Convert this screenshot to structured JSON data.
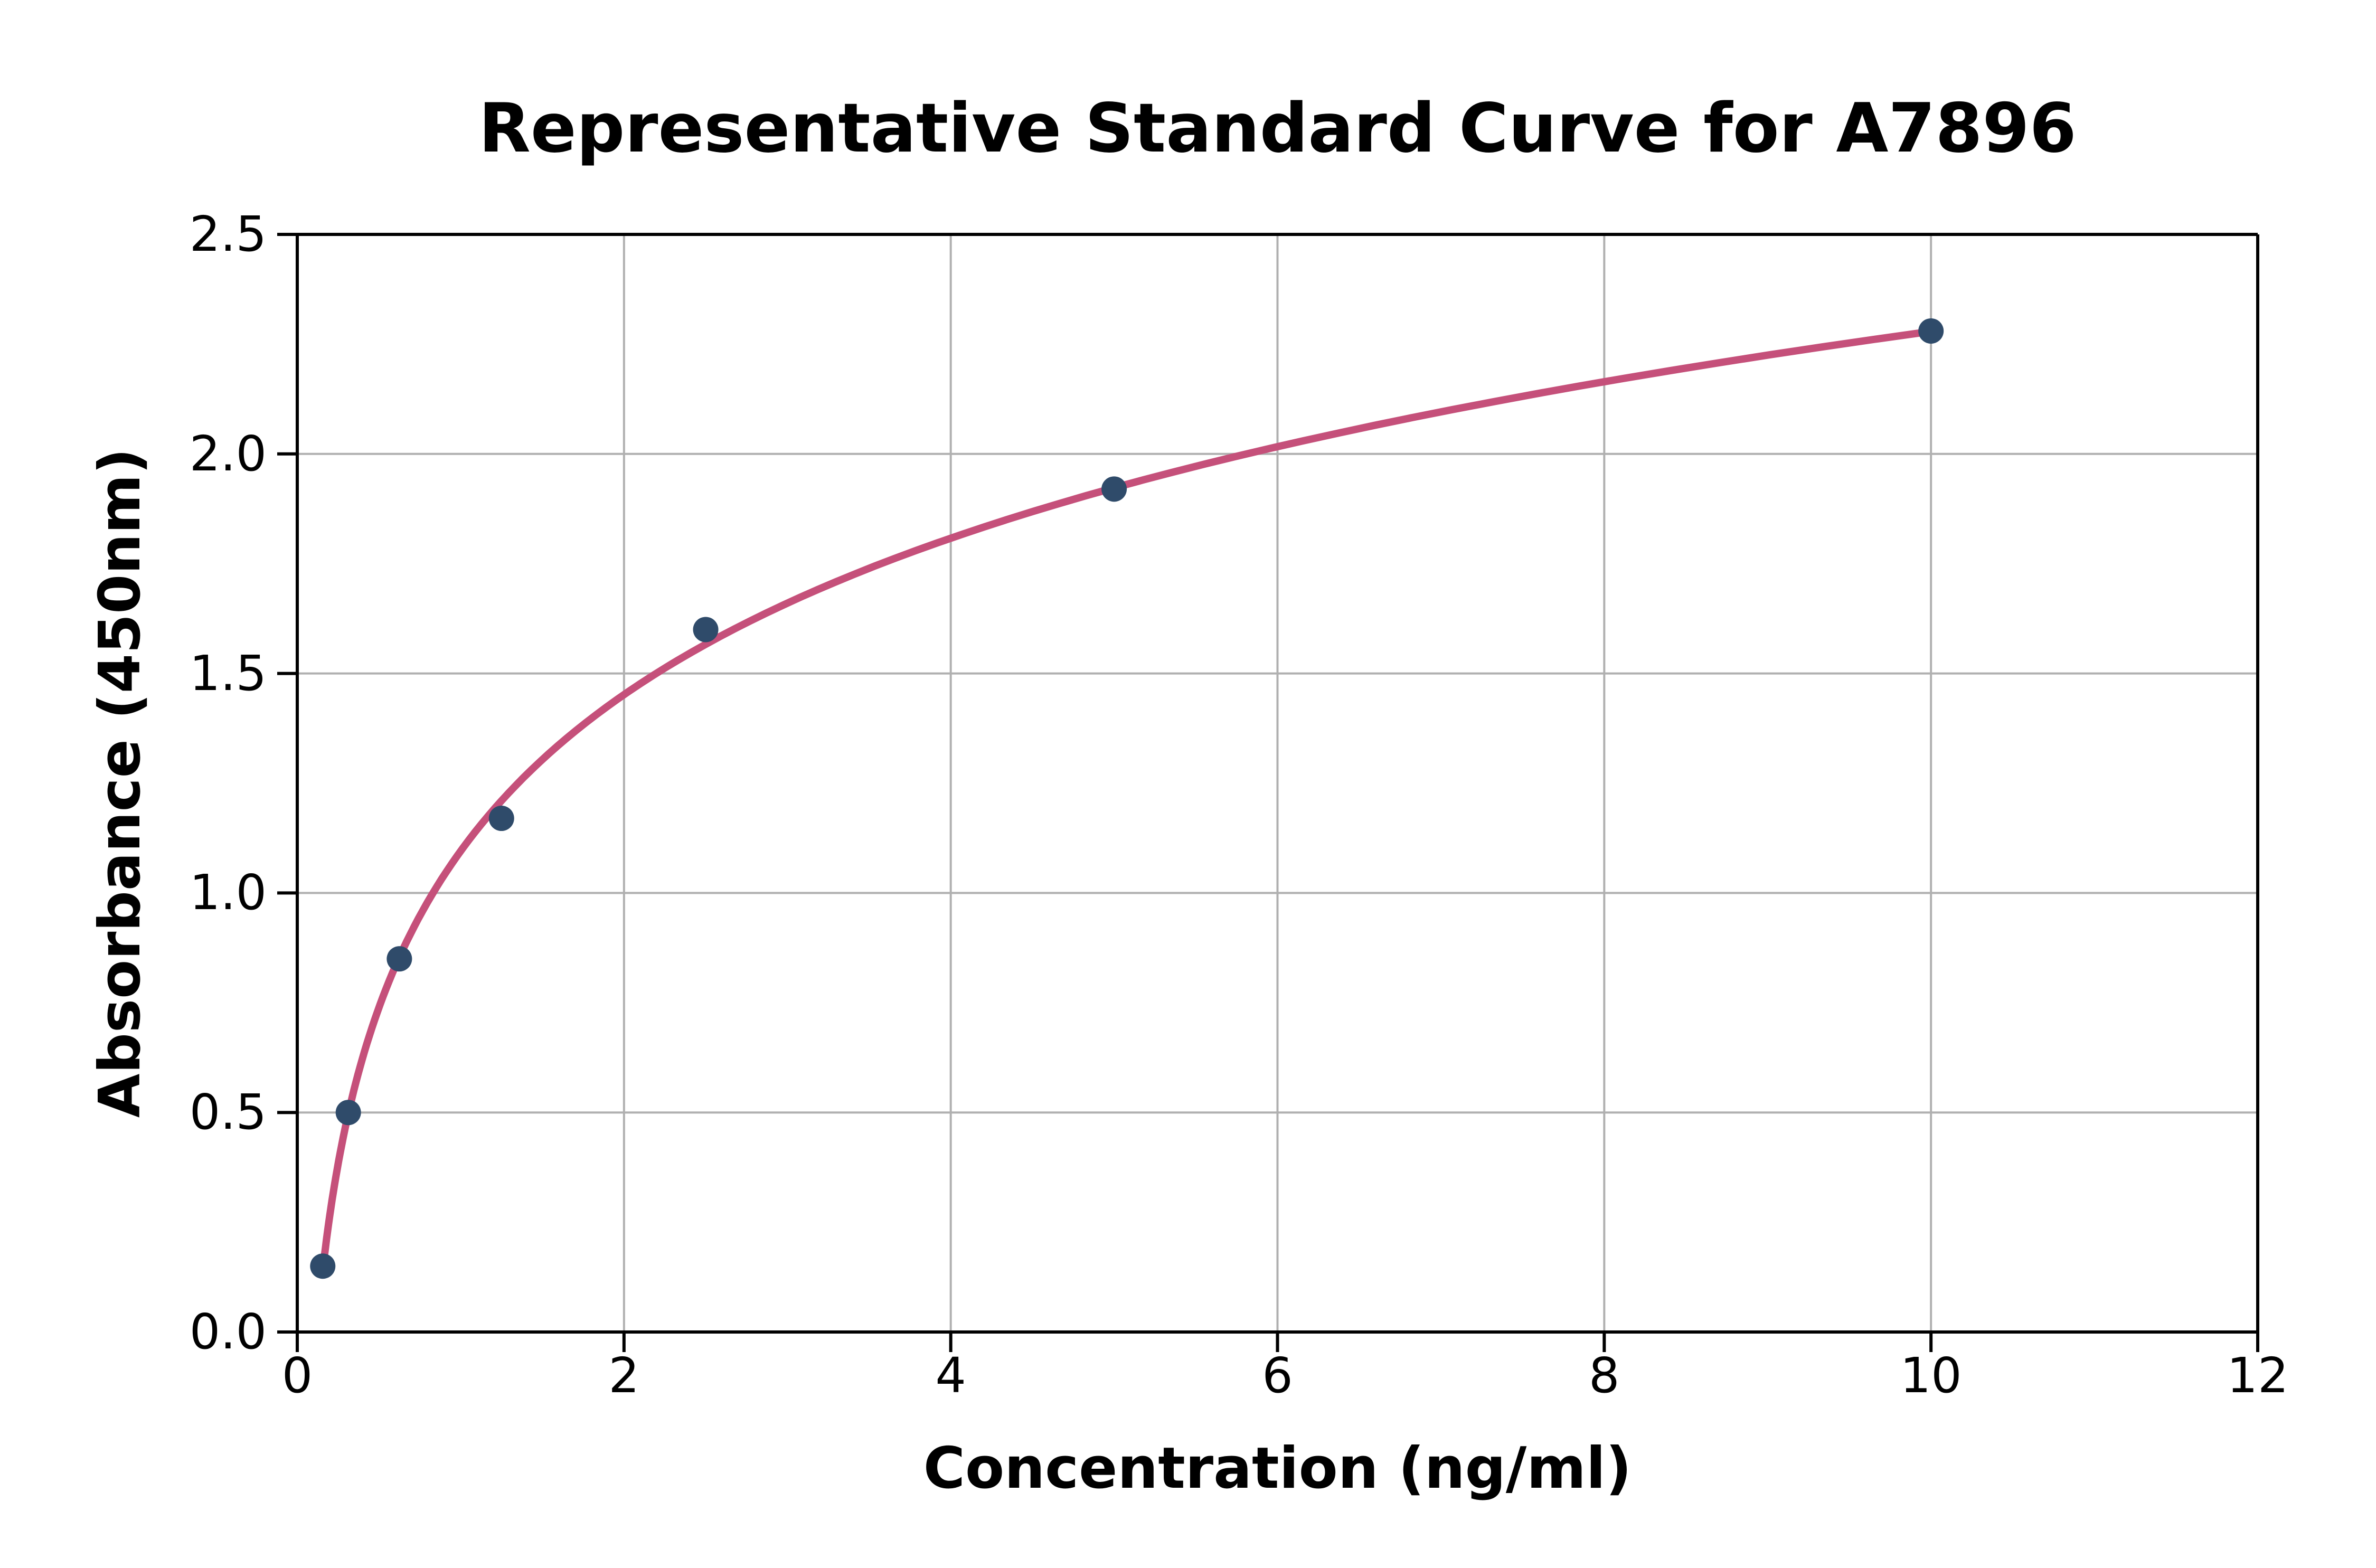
{
  "figure": {
    "background": "#FFFFFF"
  },
  "chart_data": {
    "type": "scatter",
    "title": "Representative Standard Curve for A7896",
    "xlabel": "Concentration (ng/ml)",
    "ylabel": "Absorbance (450nm)",
    "x": [
      0.156,
      0.3125,
      0.625,
      1.25,
      2.5,
      5,
      10
    ],
    "y": [
      0.15,
      0.5,
      0.85,
      1.17,
      1.6,
      1.92,
      2.28
    ],
    "fit_curve": "logarithmic-least-squares",
    "xlim": [
      0,
      12
    ],
    "ylim": [
      0,
      2.5
    ],
    "xticks": {
      "values": [
        0,
        2,
        4,
        6,
        8,
        10,
        12
      ],
      "labels": [
        "0",
        "2",
        "4",
        "6",
        "8",
        "10",
        "12"
      ]
    },
    "yticks": {
      "values": [
        0,
        0.5,
        1.0,
        1.5,
        2.0,
        2.5
      ],
      "labels": [
        "0.0",
        "0.5",
        "1.0",
        "1.5",
        "2.0",
        "2.5"
      ]
    },
    "grid": true,
    "legend": "none",
    "colors": {
      "curve": "#C5507A",
      "marker": "#2F4B6A",
      "grid": "#B0B0B0",
      "spine": "#000000",
      "text": "#000000"
    }
  }
}
